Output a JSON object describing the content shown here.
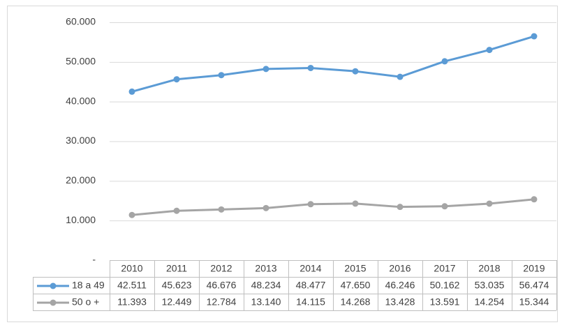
{
  "chart_data": {
    "type": "line",
    "categories": [
      "2010",
      "2011",
      "2012",
      "2013",
      "2014",
      "2015",
      "2016",
      "2017",
      "2018",
      "2019"
    ],
    "series": [
      {
        "name": "18 a 49",
        "color": "#5b9bd5",
        "values": [
          42511,
          45623,
          46676,
          48234,
          48477,
          47650,
          46246,
          50162,
          53035,
          56474
        ],
        "value_labels": [
          "42.511",
          "45.623",
          "46.676",
          "48.234",
          "48.477",
          "47.650",
          "46.246",
          "50.162",
          "53.035",
          "56.474"
        ]
      },
      {
        "name": "50 o +",
        "color": "#a5a5a5",
        "values": [
          11393,
          12449,
          12784,
          13140,
          14115,
          14268,
          13428,
          13591,
          14254,
          15344
        ],
        "value_labels": [
          "11.393",
          "12.449",
          "12.784",
          "13.140",
          "14.115",
          "14.268",
          "13.428",
          "13.591",
          "14.254",
          "15.344"
        ]
      }
    ],
    "ylim": [
      0,
      60000
    ],
    "yticks": [
      {
        "value": 0,
        "label": "-"
      },
      {
        "value": 10000,
        "label": "10.000"
      },
      {
        "value": 20000,
        "label": "20.000"
      },
      {
        "value": 30000,
        "label": "30.000"
      },
      {
        "value": 40000,
        "label": "40.000"
      },
      {
        "value": 50000,
        "label": "50.000"
      },
      {
        "value": 60000,
        "label": "60.000"
      }
    ],
    "grid": true
  }
}
